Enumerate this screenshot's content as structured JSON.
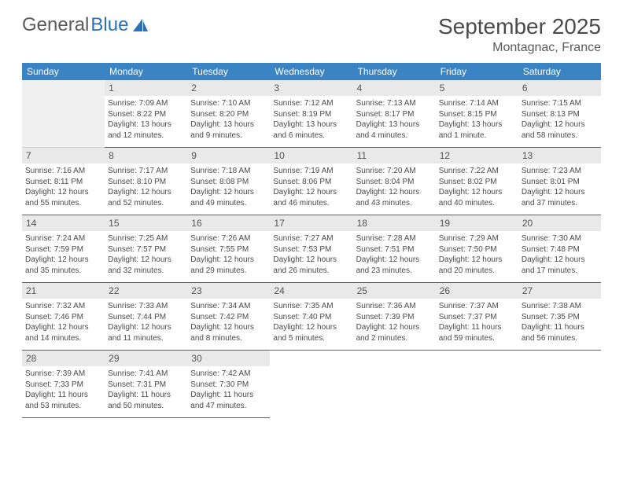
{
  "logo": {
    "text1": "General",
    "text2": "Blue"
  },
  "title": "September 2025",
  "location": "Montagnac, France",
  "header_bg": "#3b84c4",
  "daynum_bg": "#e9e9e9",
  "border_color": "#2f6aa3",
  "days_of_week": [
    "Sunday",
    "Monday",
    "Tuesday",
    "Wednesday",
    "Thursday",
    "Friday",
    "Saturday"
  ],
  "leading_blanks": 1,
  "trailing_blanks": 4,
  "days": [
    {
      "n": "1",
      "sunrise": "7:09 AM",
      "sunset": "8:22 PM",
      "daylight": "13 hours and 12 minutes."
    },
    {
      "n": "2",
      "sunrise": "7:10 AM",
      "sunset": "8:20 PM",
      "daylight": "13 hours and 9 minutes."
    },
    {
      "n": "3",
      "sunrise": "7:12 AM",
      "sunset": "8:19 PM",
      "daylight": "13 hours and 6 minutes."
    },
    {
      "n": "4",
      "sunrise": "7:13 AM",
      "sunset": "8:17 PM",
      "daylight": "13 hours and 4 minutes."
    },
    {
      "n": "5",
      "sunrise": "7:14 AM",
      "sunset": "8:15 PM",
      "daylight": "13 hours and 1 minute."
    },
    {
      "n": "6",
      "sunrise": "7:15 AM",
      "sunset": "8:13 PM",
      "daylight": "12 hours and 58 minutes."
    },
    {
      "n": "7",
      "sunrise": "7:16 AM",
      "sunset": "8:11 PM",
      "daylight": "12 hours and 55 minutes."
    },
    {
      "n": "8",
      "sunrise": "7:17 AM",
      "sunset": "8:10 PM",
      "daylight": "12 hours and 52 minutes."
    },
    {
      "n": "9",
      "sunrise": "7:18 AM",
      "sunset": "8:08 PM",
      "daylight": "12 hours and 49 minutes."
    },
    {
      "n": "10",
      "sunrise": "7:19 AM",
      "sunset": "8:06 PM",
      "daylight": "12 hours and 46 minutes."
    },
    {
      "n": "11",
      "sunrise": "7:20 AM",
      "sunset": "8:04 PM",
      "daylight": "12 hours and 43 minutes."
    },
    {
      "n": "12",
      "sunrise": "7:22 AM",
      "sunset": "8:02 PM",
      "daylight": "12 hours and 40 minutes."
    },
    {
      "n": "13",
      "sunrise": "7:23 AM",
      "sunset": "8:01 PM",
      "daylight": "12 hours and 37 minutes."
    },
    {
      "n": "14",
      "sunrise": "7:24 AM",
      "sunset": "7:59 PM",
      "daylight": "12 hours and 35 minutes."
    },
    {
      "n": "15",
      "sunrise": "7:25 AM",
      "sunset": "7:57 PM",
      "daylight": "12 hours and 32 minutes."
    },
    {
      "n": "16",
      "sunrise": "7:26 AM",
      "sunset": "7:55 PM",
      "daylight": "12 hours and 29 minutes."
    },
    {
      "n": "17",
      "sunrise": "7:27 AM",
      "sunset": "7:53 PM",
      "daylight": "12 hours and 26 minutes."
    },
    {
      "n": "18",
      "sunrise": "7:28 AM",
      "sunset": "7:51 PM",
      "daylight": "12 hours and 23 minutes."
    },
    {
      "n": "19",
      "sunrise": "7:29 AM",
      "sunset": "7:50 PM",
      "daylight": "12 hours and 20 minutes."
    },
    {
      "n": "20",
      "sunrise": "7:30 AM",
      "sunset": "7:48 PM",
      "daylight": "12 hours and 17 minutes."
    },
    {
      "n": "21",
      "sunrise": "7:32 AM",
      "sunset": "7:46 PM",
      "daylight": "12 hours and 14 minutes."
    },
    {
      "n": "22",
      "sunrise": "7:33 AM",
      "sunset": "7:44 PM",
      "daylight": "12 hours and 11 minutes."
    },
    {
      "n": "23",
      "sunrise": "7:34 AM",
      "sunset": "7:42 PM",
      "daylight": "12 hours and 8 minutes."
    },
    {
      "n": "24",
      "sunrise": "7:35 AM",
      "sunset": "7:40 PM",
      "daylight": "12 hours and 5 minutes."
    },
    {
      "n": "25",
      "sunrise": "7:36 AM",
      "sunset": "7:39 PM",
      "daylight": "12 hours and 2 minutes."
    },
    {
      "n": "26",
      "sunrise": "7:37 AM",
      "sunset": "7:37 PM",
      "daylight": "11 hours and 59 minutes."
    },
    {
      "n": "27",
      "sunrise": "7:38 AM",
      "sunset": "7:35 PM",
      "daylight": "11 hours and 56 minutes."
    },
    {
      "n": "28",
      "sunrise": "7:39 AM",
      "sunset": "7:33 PM",
      "daylight": "11 hours and 53 minutes."
    },
    {
      "n": "29",
      "sunrise": "7:41 AM",
      "sunset": "7:31 PM",
      "daylight": "11 hours and 50 minutes."
    },
    {
      "n": "30",
      "sunrise": "7:42 AM",
      "sunset": "7:30 PM",
      "daylight": "11 hours and 47 minutes."
    }
  ]
}
